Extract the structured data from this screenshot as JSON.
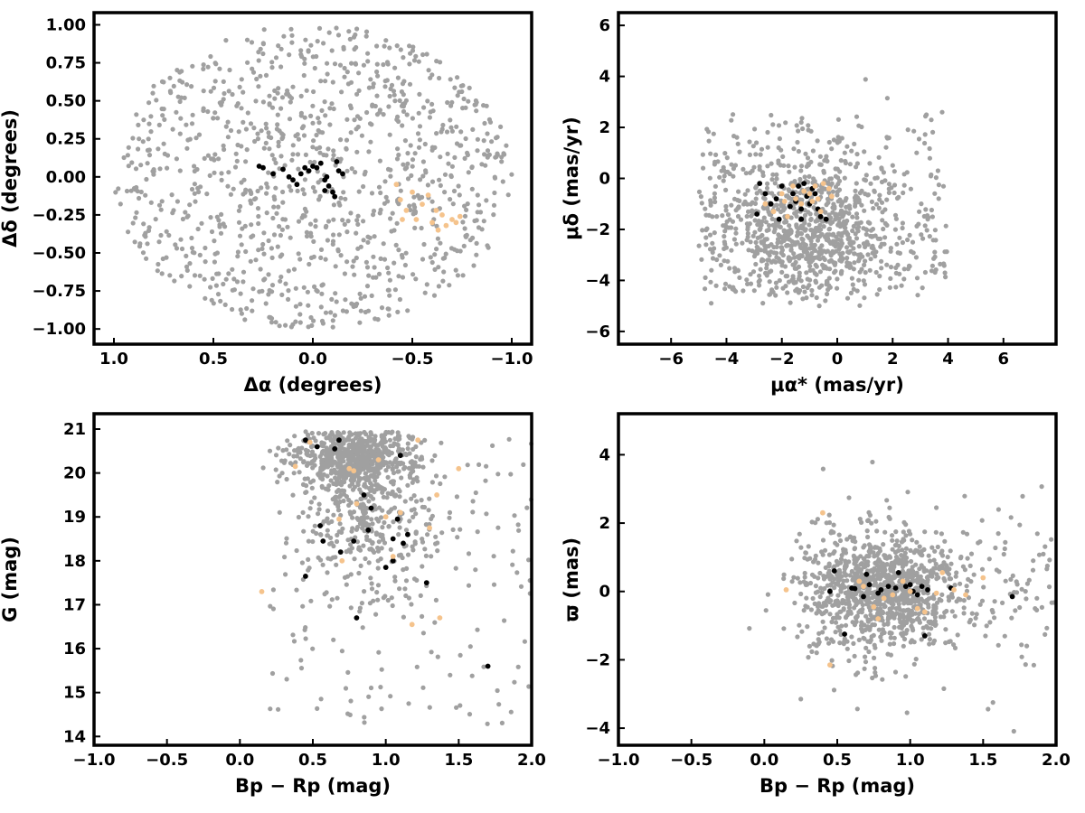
{
  "figure": {
    "colors": {
      "field": "#a0a0a0",
      "cluster_a": "#000000",
      "cluster_b": "#f5c38c",
      "frame": "#000000"
    }
  },
  "chart_data": [
    {
      "type": "scatter",
      "xlabel": "Δα (degrees)",
      "ylabel": "Δδ (degrees)",
      "xlim": [
        1.1,
        -1.1
      ],
      "ylim": [
        -1.1,
        1.08
      ],
      "x_inverted": true,
      "xticks": [
        1.0,
        0.5,
        0.0,
        -0.5,
        -1.0
      ],
      "xtick_labels": [
        "1.0",
        "0.5",
        "0.0",
        "−0.5",
        "−1.0"
      ],
      "yticks": [
        1.0,
        0.75,
        0.5,
        0.25,
        0.0,
        -0.25,
        -0.5,
        -0.75,
        -1.0
      ],
      "ytick_labels": [
        "1.00",
        "0.75",
        "0.50",
        "0.25",
        "0.00",
        "−0.25",
        "−0.50",
        "−0.75",
        "−1.00"
      ],
      "grid": false,
      "field_description": "approx. 1100 grey field stars uniformly filling a circle of radius 1 degree",
      "series": [
        {
          "color": "#000000",
          "points": [
            [
              0.27,
              0.07
            ],
            [
              0.25,
              0.06
            ],
            [
              0.2,
              0.02
            ],
            [
              0.15,
              0.05
            ],
            [
              0.12,
              0.0
            ],
            [
              0.1,
              -0.02
            ],
            [
              0.08,
              -0.05
            ],
            [
              0.06,
              0.02
            ],
            [
              0.04,
              0.06
            ],
            [
              0.02,
              0.04
            ],
            [
              0.0,
              0.07
            ],
            [
              -0.02,
              0.06
            ],
            [
              -0.04,
              0.09
            ],
            [
              -0.06,
              -0.02
            ],
            [
              -0.07,
              0.0
            ],
            [
              -0.08,
              -0.06
            ],
            [
              -0.1,
              -0.1
            ],
            [
              -0.11,
              -0.13
            ],
            [
              -0.12,
              0.1
            ],
            [
              -0.13,
              0.04
            ],
            [
              -0.15,
              0.02
            ],
            [
              -0.06,
              -0.09
            ]
          ]
        },
        {
          "color": "#f5c38c",
          "points": [
            [
              -0.42,
              -0.05
            ],
            [
              -0.45,
              -0.28
            ],
            [
              -0.47,
              -0.22
            ],
            [
              -0.5,
              -0.1
            ],
            [
              -0.52,
              -0.28
            ],
            [
              -0.55,
              -0.18
            ],
            [
              -0.6,
              -0.3
            ],
            [
              -0.63,
              -0.35
            ],
            [
              -0.65,
              -0.25
            ],
            [
              -0.67,
              -0.32
            ],
            [
              -0.7,
              -0.28
            ],
            [
              -0.72,
              -0.3
            ],
            [
              -0.74,
              -0.26
            ],
            [
              -0.62,
              -0.22
            ],
            [
              -0.58,
              -0.12
            ],
            [
              -0.44,
              -0.15
            ]
          ]
        }
      ]
    },
    {
      "type": "scatter",
      "xlabel": "μα* (mas/yr)",
      "ylabel": "μδ (mas/yr)",
      "xlim": [
        -7.9,
        7.9
      ],
      "ylim": [
        -6.5,
        6.5
      ],
      "xticks": [
        -6,
        -4,
        -2,
        0,
        2,
        4,
        6
      ],
      "xtick_labels": [
        "−6",
        "−4",
        "−2",
        "0",
        "2",
        "4",
        "6"
      ],
      "yticks": [
        6,
        4,
        2,
        0,
        -2,
        -4,
        -6
      ],
      "ytick_labels": [
        "6",
        "4",
        "2",
        "0",
        "−2",
        "−4",
        "−6"
      ],
      "grid": false,
      "field_description": "grey field stars concentrated in an ellipse centred near (-0.8, -2) spanning x -5..5, y -5..4.8",
      "series": [
        {
          "color": "#000000",
          "points": [
            [
              -2.9,
              -1.4
            ],
            [
              -2.8,
              -0.2
            ],
            [
              -2.6,
              -0.6
            ],
            [
              -2.4,
              -1.0
            ],
            [
              -2.2,
              -0.8
            ],
            [
              -2.0,
              -0.3
            ],
            [
              -1.8,
              -1.5
            ],
            [
              -1.7,
              -1.1
            ],
            [
              -1.6,
              -0.6
            ],
            [
              -1.5,
              -0.9
            ],
            [
              -1.4,
              -0.3
            ],
            [
              -1.3,
              -1.2
            ],
            [
              -1.2,
              -0.2
            ],
            [
              -1.1,
              -0.7
            ],
            [
              -1.0,
              -1.0
            ],
            [
              -0.9,
              -0.4
            ],
            [
              -0.8,
              -0.6
            ],
            [
              -0.7,
              -1.2
            ],
            [
              -0.6,
              -1.5
            ],
            [
              -0.4,
              -1.6
            ],
            [
              -2.1,
              -1.6
            ],
            [
              -1.3,
              -1.6
            ]
          ]
        },
        {
          "color": "#f5c38c",
          "points": [
            [
              -2.6,
              -1.0
            ],
            [
              -2.3,
              -1.3
            ],
            [
              -2.0,
              -0.6
            ],
            [
              -1.9,
              -0.9
            ],
            [
              -1.6,
              -0.3
            ],
            [
              -1.5,
              -0.8
            ],
            [
              -1.3,
              -1.0
            ],
            [
              -1.2,
              -0.5
            ],
            [
              -1.0,
              -0.6
            ],
            [
              -0.9,
              -0.9
            ],
            [
              -0.8,
              -0.3
            ],
            [
              -0.7,
              -0.8
            ],
            [
              -0.6,
              -1.3
            ],
            [
              -0.5,
              -0.2
            ],
            [
              -0.3,
              -0.4
            ],
            [
              -0.2,
              -0.7
            ],
            [
              -1.8,
              -1.5
            ]
          ]
        }
      ]
    },
    {
      "type": "scatter",
      "xlabel": "Bp − Rp (mag)",
      "ylabel": "G (mag)",
      "xlim": [
        -1.0,
        2.0
      ],
      "ylim": [
        13.8,
        21.35
      ],
      "xticks": [
        -1.0,
        -0.5,
        0.0,
        0.5,
        1.0,
        1.5,
        2.0
      ],
      "xtick_labels": [
        "−1.0",
        "−0.5",
        "0.0",
        "0.5",
        "1.0",
        "1.5",
        "2.0"
      ],
      "yticks": [
        21,
        20,
        19,
        18,
        17,
        16,
        15,
        14
      ],
      "ytick_labels": [
        "21",
        "20",
        "19",
        "18",
        "17",
        "16",
        "15",
        "14"
      ],
      "grid": false,
      "field_description": "grey field stars forming a dense clump near color 0.8, G 20-21, thinning toward brighter magnitudes",
      "series": [
        {
          "color": "#000000",
          "points": [
            [
              0.45,
              20.75
            ],
            [
              0.53,
              20.6
            ],
            [
              0.65,
              20.55
            ],
            [
              0.68,
              20.75
            ],
            [
              1.1,
              20.4
            ],
            [
              0.85,
              19.5
            ],
            [
              0.9,
              19.2
            ],
            [
              0.55,
              18.8
            ],
            [
              0.57,
              18.45
            ],
            [
              0.69,
              18.2
            ],
            [
              0.78,
              18.45
            ],
            [
              0.88,
              18.7
            ],
            [
              1.05,
              18.5
            ],
            [
              1.08,
              18.95
            ],
            [
              1.12,
              18.4
            ],
            [
              1.15,
              18.6
            ],
            [
              1.05,
              18.0
            ],
            [
              1.0,
              17.85
            ],
            [
              0.45,
              17.65
            ],
            [
              1.28,
              17.5
            ],
            [
              0.8,
              16.7
            ],
            [
              1.7,
              15.6
            ]
          ]
        },
        {
          "color": "#f5c38c",
          "points": [
            [
              0.15,
              17.3
            ],
            [
              0.38,
              20.15
            ],
            [
              0.48,
              20.7
            ],
            [
              0.68,
              18.95
            ],
            [
              0.7,
              18.0
            ],
            [
              0.75,
              20.1
            ],
            [
              0.78,
              20.05
            ],
            [
              0.8,
              19.3
            ],
            [
              0.95,
              20.3
            ],
            [
              1.0,
              19.0
            ],
            [
              1.05,
              18.1
            ],
            [
              1.1,
              19.1
            ],
            [
              1.18,
              16.55
            ],
            [
              1.22,
              20.75
            ],
            [
              1.3,
              18.75
            ],
            [
              1.35,
              19.5
            ],
            [
              1.37,
              16.7
            ],
            [
              1.5,
              20.1
            ]
          ]
        }
      ]
    },
    {
      "type": "scatter",
      "xlabel": "Bp − Rp (mag)",
      "ylabel": "ϖ (mas)",
      "xlim": [
        -1.0,
        2.0
      ],
      "ylim": [
        -4.5,
        5.2
      ],
      "xticks": [
        -1.0,
        -0.5,
        0.0,
        0.5,
        1.0,
        1.5,
        2.0
      ],
      "xtick_labels": [
        "−1.0",
        "−0.5",
        "0.0",
        "0.5",
        "1.0",
        "1.5",
        "2.0"
      ],
      "yticks": [
        4,
        2,
        0,
        -2,
        -4
      ],
      "ytick_labels": [
        "4",
        "2",
        "0",
        "−2",
        "−4"
      ],
      "grid": false,
      "field_description": "grey field stars forming a dense blob near color 0.8, parallax 0, spread -4..4.8",
      "series": [
        {
          "color": "#000000",
          "points": [
            [
              0.45,
              0.0
            ],
            [
              0.48,
              0.6
            ],
            [
              0.55,
              -1.25
            ],
            [
              0.6,
              0.1
            ],
            [
              0.62,
              0.08
            ],
            [
              0.68,
              -0.15
            ],
            [
              0.7,
              0.5
            ],
            [
              0.72,
              0.2
            ],
            [
              0.78,
              -0.05
            ],
            [
              0.8,
              0.05
            ],
            [
              0.85,
              0.15
            ],
            [
              0.9,
              0.1
            ],
            [
              0.92,
              0.55
            ],
            [
              0.97,
              0.15
            ],
            [
              1.0,
              0.2
            ],
            [
              1.02,
              0.0
            ],
            [
              1.05,
              -0.1
            ],
            [
              1.08,
              0.15
            ],
            [
              1.1,
              -1.3
            ],
            [
              1.12,
              0.05
            ],
            [
              1.28,
              0.1
            ],
            [
              1.7,
              -0.15
            ]
          ]
        },
        {
          "color": "#f5c38c",
          "points": [
            [
              0.15,
              0.05
            ],
            [
              0.4,
              2.3
            ],
            [
              0.45,
              -2.15
            ],
            [
              0.65,
              0.3
            ],
            [
              0.75,
              -0.45
            ],
            [
              0.78,
              -0.8
            ],
            [
              0.82,
              -0.2
            ],
            [
              0.88,
              -0.1
            ],
            [
              0.95,
              0.3
            ],
            [
              1.0,
              0.0
            ],
            [
              1.05,
              -0.5
            ],
            [
              1.1,
              -0.6
            ],
            [
              1.18,
              -0.05
            ],
            [
              1.22,
              0.55
            ],
            [
              1.3,
              0.05
            ],
            [
              1.38,
              -0.1
            ],
            [
              1.5,
              0.4
            ],
            [
              0.68,
              0.15
            ]
          ]
        }
      ]
    }
  ]
}
